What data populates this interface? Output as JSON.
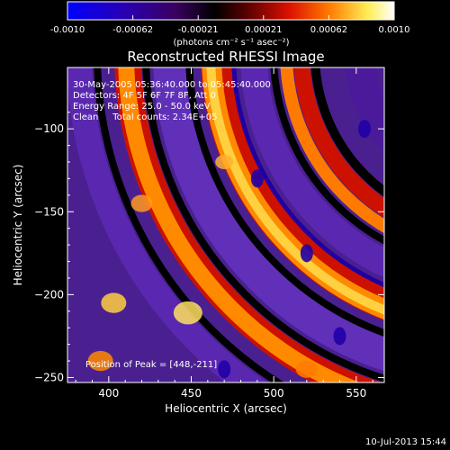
{
  "colorbar": {
    "ticks": [
      "-0.0010",
      "-0.00062",
      "-0.00021",
      "0.00021",
      "0.00062",
      "0.0010"
    ],
    "unit_label": "(photons cm⁻² s⁻¹ asec⁻²)",
    "colormap": [
      "#0000ff",
      "#3a0070",
      "#000000",
      "#8b0000",
      "#ff2200",
      "#ff8800",
      "#ffff66",
      "#ffffff"
    ]
  },
  "chart_data": {
    "type": "heatmap",
    "title": "Reconstructed RHESSI Image",
    "xlabel": "Heliocentric X (arcsec)",
    "ylabel": "Heliocentric Y (arcsec)",
    "x_ticks": [
      400,
      450,
      500,
      550
    ],
    "y_ticks": [
      -100,
      -150,
      -200,
      -250
    ],
    "xlim": [
      375,
      567
    ],
    "ylim": [
      -253,
      -63
    ],
    "annotation_lines": [
      "30-May-2005 05:36:40.000 to 05:45:40.000",
      "Detectors: 4F 5F 6F 7F 8F, Att 0",
      "Energy Range: 25.0 - 50.0 keV",
      "Clean     Total counts: 2.34E+05"
    ],
    "peak_label": "Position of Peak = [448,-211]",
    "peak": [
      448,
      -211
    ]
  },
  "footer": {
    "date": "10-Jul-2013 15:44"
  }
}
